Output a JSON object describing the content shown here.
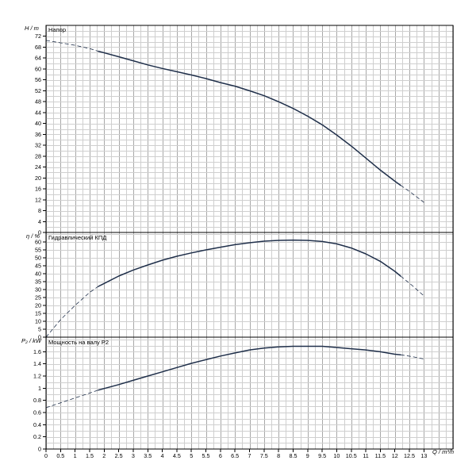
{
  "chart_data": {
    "type": "line",
    "x_axis": {
      "label": "Q / m³/h",
      "ticks": [
        "0",
        "0.5",
        "1",
        "1.5",
        "2",
        "2.5",
        "3",
        "3.5",
        "4",
        "4.5",
        "5",
        "5.5",
        "6",
        "6.5",
        "7",
        "7.5",
        "8",
        "8.5",
        "9",
        "9.5",
        "10",
        "10.5",
        "11",
        "11.5",
        "12",
        "12.5",
        "13"
      ],
      "range": [
        0,
        14
      ],
      "grid": true
    },
    "panels": [
      {
        "id": "head",
        "title": "Напор",
        "axis_label": "H / m",
        "ylim": [
          0,
          76
        ],
        "ticks": [
          "0",
          "4",
          "8",
          "12",
          "16",
          "20",
          "24",
          "28",
          "32",
          "36",
          "40",
          "44",
          "48",
          "52",
          "56",
          "60",
          "64",
          "68",
          "72"
        ],
        "minor_step": 2,
        "solid": {
          "x": [
            1.8,
            2.5,
            3,
            3.5,
            4,
            4.5,
            5,
            5.5,
            6,
            6.5,
            7,
            7.5,
            8,
            8.5,
            9,
            9.5,
            10,
            10.5,
            11,
            11.5,
            12,
            12.2
          ],
          "y": [
            66.5,
            64.5,
            63,
            61.5,
            60.2,
            59,
            57.8,
            56.5,
            55,
            53.7,
            52,
            50.2,
            48,
            45.5,
            42.7,
            39.5,
            35.8,
            31.7,
            27.3,
            22.9,
            18.8,
            17.3
          ]
        },
        "dashed": [
          {
            "x": [
              0,
              0.5,
              1,
              1.5,
              1.8
            ],
            "y": [
              70.5,
              69.6,
              68.7,
              67.5,
              66.5
            ]
          },
          {
            "x": [
              12.2,
              12.6,
              13
            ],
            "y": [
              17.3,
              14.3,
              11
            ]
          }
        ]
      },
      {
        "id": "efficiency",
        "title": "Гидравлический КПД",
        "axis_label": "η / %",
        "ylim": [
          0,
          66
        ],
        "ticks": [
          "0",
          "5",
          "10",
          "15",
          "20",
          "25",
          "30",
          "35",
          "40",
          "45",
          "50",
          "55",
          "60"
        ],
        "minor_step": 5,
        "solid": {
          "x": [
            1.8,
            2.5,
            3,
            3.5,
            4,
            4.5,
            5,
            5.5,
            6,
            6.5,
            7,
            7.5,
            8,
            8.5,
            9,
            9.5,
            10,
            10.5,
            11,
            11.5,
            12,
            12.2
          ],
          "y": [
            32,
            38.5,
            42.3,
            45.5,
            48.5,
            51,
            53.1,
            55,
            56.7,
            58.3,
            59.5,
            60.5,
            61,
            61.2,
            61,
            60.3,
            58.8,
            56.2,
            52.5,
            47.8,
            41.5,
            38.5
          ]
        },
        "dashed": [
          {
            "x": [
              0,
              0.5,
              1,
              1.5,
              1.8
            ],
            "y": [
              0,
              11,
              20,
              28.2,
              32
            ]
          },
          {
            "x": [
              12.2,
              12.6,
              13
            ],
            "y": [
              38.5,
              32.5,
              26
            ]
          }
        ]
      },
      {
        "id": "power",
        "title": "Мощность на валу P2",
        "axis_label": "P₂ / kW",
        "ylim": [
          0,
          1.84
        ],
        "ticks": [
          "0",
          "0.2",
          "0.4",
          "0.6",
          "0.8",
          "1",
          "1.2",
          "1.4",
          "1.6"
        ],
        "minor_step": 0.1,
        "solid": {
          "x": [
            1.8,
            2.5,
            3,
            3.5,
            4,
            4.5,
            5,
            5.5,
            6,
            6.5,
            7,
            7.5,
            8,
            8.5,
            9,
            9.5,
            10,
            10.5,
            11,
            11.5,
            12,
            12.2
          ],
          "y": [
            0.97,
            1.06,
            1.13,
            1.2,
            1.27,
            1.34,
            1.41,
            1.47,
            1.53,
            1.58,
            1.63,
            1.66,
            1.68,
            1.69,
            1.69,
            1.69,
            1.67,
            1.65,
            1.63,
            1.6,
            1.56,
            1.55
          ]
        },
        "dashed": [
          {
            "x": [
              0,
              0.5,
              1,
              1.5,
              1.8
            ],
            "y": [
              0.68,
              0.76,
              0.84,
              0.92,
              0.97
            ]
          },
          {
            "x": [
              12.2,
              12.6,
              13
            ],
            "y": [
              1.55,
              1.52,
              1.48
            ]
          }
        ]
      }
    ]
  }
}
